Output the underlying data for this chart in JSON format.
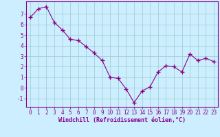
{
  "x": [
    0,
    1,
    2,
    3,
    4,
    5,
    6,
    7,
    8,
    9,
    10,
    11,
    12,
    13,
    14,
    15,
    16,
    17,
    18,
    19,
    20,
    21,
    22,
    23
  ],
  "y": [
    6.7,
    7.5,
    7.7,
    6.2,
    5.5,
    4.6,
    4.5,
    3.9,
    3.3,
    2.6,
    1.0,
    0.9,
    -0.1,
    -1.4,
    -0.3,
    0.1,
    1.5,
    2.1,
    2.0,
    1.5,
    3.2,
    2.6,
    2.8,
    2.5
  ],
  "line_color": "#880088",
  "marker": "+",
  "marker_size": 4,
  "bg_color": "#cceeff",
  "grid_color": "#99cccc",
  "xlabel": "Windchill (Refroidissement éolien,°C)",
  "ylim": [
    -1.8,
    8.2
  ],
  "xlim": [
    -0.5,
    23.5
  ],
  "yticks": [
    -1,
    0,
    1,
    2,
    3,
    4,
    5,
    6,
    7
  ],
  "xticks": [
    0,
    1,
    2,
    3,
    4,
    5,
    6,
    7,
    8,
    9,
    10,
    11,
    12,
    13,
    14,
    15,
    16,
    17,
    18,
    19,
    20,
    21,
    22,
    23
  ],
  "tick_color": "#880088",
  "label_color": "#880088",
  "axis_color": "#880088",
  "line_width": 0.8,
  "marker_linewidth": 1.0
}
